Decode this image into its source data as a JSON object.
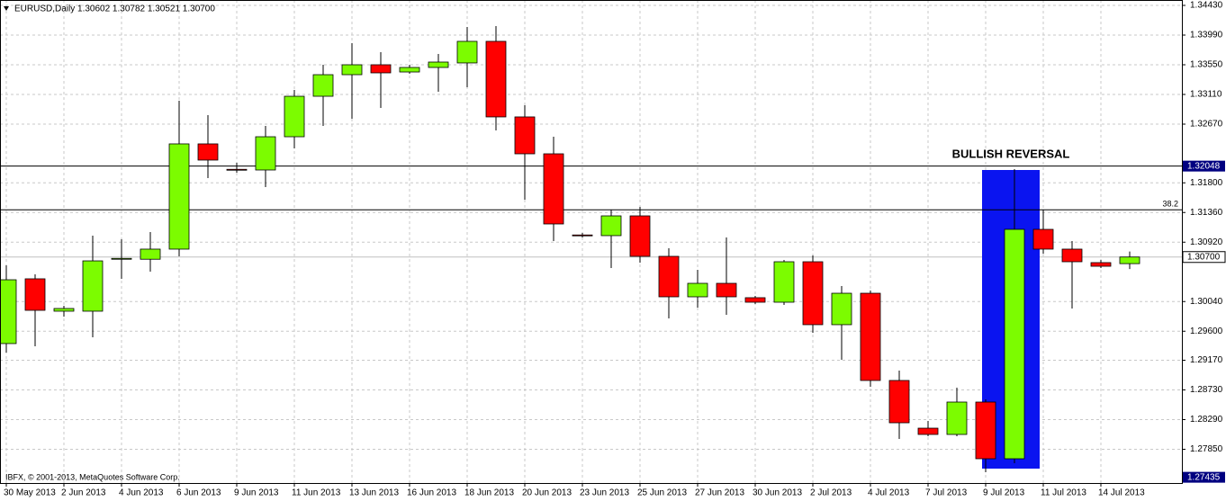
{
  "chart_data": {
    "type": "candlestick",
    "title": "EURUSD,Daily  1.30602 1.30782 1.30521 1.30700",
    "footer": "IBFX, © 2001-2013, MetaQuotes Software Corp.",
    "annotation": "BULLISH REVERSAL",
    "categories": [
      "30 May 2013",
      null,
      "2 Jun 2013",
      null,
      "4 Jun 2013",
      null,
      "6 Jun 2013",
      null,
      "9 Jun 2013",
      null,
      "11 Jun 2013",
      null,
      "13 Jun 2013",
      null,
      "16 Jun 2013",
      null,
      "18 Jun 2013",
      null,
      "20 Jun 2013",
      null,
      "23 Jun 2013",
      null,
      "25 Jun 2013",
      null,
      "27 Jun 2013",
      null,
      "30 Jun 2013",
      null,
      "2 Jul 2013",
      null,
      "4 Jul 2013",
      null,
      "7 Jul 2013",
      null,
      "9 Jul 2013",
      null,
      "11 Jul 2013",
      null,
      "14 Jul 2013",
      null
    ],
    "open": [
      1.29417,
      1.30377,
      1.29897,
      1.29897,
      1.30667,
      1.30667,
      1.30817,
      1.32377,
      1.32,
      1.3199,
      1.32483,
      1.33083,
      1.33403,
      1.3355,
      1.33443,
      1.3351,
      1.33577,
      1.33897,
      1.32777,
      1.3223,
      1.31027,
      1.31017,
      1.3131,
      1.3071,
      1.3011,
      1.3031,
      1.30097,
      1.3003,
      1.3063,
      1.29697,
      1.30163,
      1.2887,
      1.28163,
      1.2807,
      1.2855,
      1.2771,
      1.3111,
      1.30817,
      1.30617,
      1.30602
    ],
    "high": [
      1.30577,
      1.30443,
      1.29977,
      1.31017,
      1.30963,
      1.3107,
      1.33017,
      1.32803,
      1.32097,
      1.32643,
      1.33177,
      1.3355,
      1.3387,
      1.33737,
      1.3355,
      1.3371,
      1.3411,
      1.34123,
      1.3295,
      1.32483,
      1.31057,
      1.31403,
      1.31443,
      1.3083,
      1.3051,
      1.3099,
      1.30123,
      1.30657,
      1.30723,
      1.3027,
      1.30203,
      1.29017,
      1.2827,
      1.28763,
      1.2859,
      1.32003,
      1.31403,
      1.30937,
      1.30657,
      1.30782
    ],
    "low": [
      1.29283,
      1.29377,
      1.29817,
      1.2951,
      1.30377,
      1.30483,
      1.3071,
      1.3187,
      1.3195,
      1.31737,
      1.3231,
      1.32643,
      1.3275,
      1.3291,
      1.33417,
      1.3315,
      1.33217,
      1.32577,
      1.3155,
      1.30937,
      1.3099,
      1.30537,
      1.30617,
      1.2979,
      1.2995,
      1.29843,
      1.30003,
      1.2999,
      1.29577,
      1.29177,
      1.28777,
      1.28003,
      1.28043,
      1.28043,
      1.2751,
      1.27643,
      1.3075,
      1.29937,
      1.30537,
      1.30521
    ],
    "close": [
      1.30363,
      1.2991,
      1.29937,
      1.30643,
      1.3068,
      1.30817,
      1.32377,
      1.32137,
      1.3199,
      1.32483,
      1.33083,
      1.33403,
      1.3355,
      1.3343,
      1.3351,
      1.3359,
      1.33897,
      1.32777,
      1.3223,
      1.3119,
      1.31017,
      1.3131,
      1.3071,
      1.3011,
      1.3031,
      1.3011,
      1.3003,
      1.3063,
      1.29697,
      1.30163,
      1.2887,
      1.28243,
      1.2807,
      1.2855,
      1.2771,
      1.3111,
      1.30817,
      1.3063,
      1.30563,
      1.307
    ],
    "up_color": "#7cfc00",
    "down_color": "#ff0000",
    "ylim": [
      1.2735,
      1.3451
    ],
    "yticks": [
      {
        "value": 1.3443,
        "label": "1.34430"
      },
      {
        "value": 1.3399,
        "label": "1.33990"
      },
      {
        "value": 1.3355,
        "label": "1.33550"
      },
      {
        "value": 1.3311,
        "label": "1.33110"
      },
      {
        "value": 1.3267,
        "label": "1.32670"
      },
      {
        "value": 1.318,
        "label": "1.31800"
      },
      {
        "value": 1.3136,
        "label": "1.31360"
      },
      {
        "value": 1.3092,
        "label": "1.30920"
      },
      {
        "value": 1.3004,
        "label": "1.30040"
      },
      {
        "value": 1.296,
        "label": "1.29600"
      },
      {
        "value": 1.2917,
        "label": "1.29170"
      },
      {
        "value": 1.2873,
        "label": "1.28730"
      },
      {
        "value": 1.2829,
        "label": "1.28290"
      },
      {
        "value": 1.2785,
        "label": "1.27850"
      }
    ],
    "hlines": [
      {
        "value": 1.32048,
        "label": "1.32048"
      },
      {
        "value": 1.314,
        "label": "38.2"
      }
    ],
    "price_markers": [
      {
        "value": 1.307,
        "label": "1.30700"
      },
      {
        "value": 1.27435,
        "label": "1.27435"
      }
    ],
    "grid": true
  }
}
